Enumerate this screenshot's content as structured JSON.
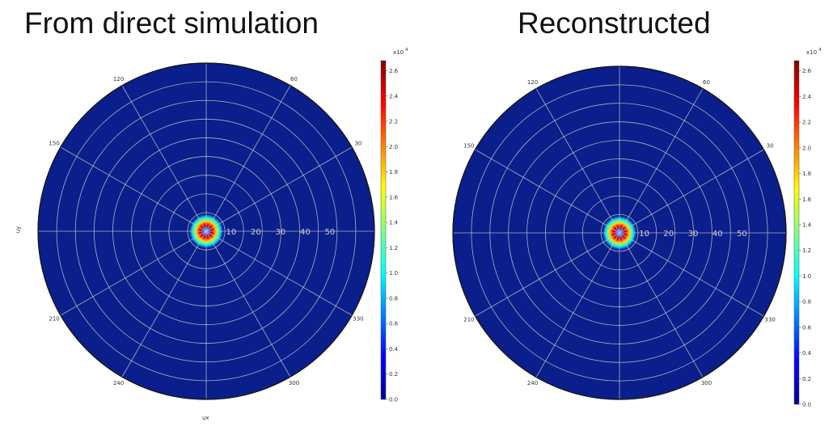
{
  "titles": {
    "left": "From direct simulation",
    "right": "Reconstructed"
  },
  "axis_labels": {
    "x": "ux",
    "y": "uy"
  },
  "colorbar": {
    "exponent_label": "x10",
    "exponent": "4",
    "ticks": [
      "0.0",
      "0.2",
      "0.4",
      "0.6",
      "0.8",
      "1.0",
      "1.2",
      "1.4",
      "1.6",
      "1.8",
      "2.0",
      "2.2",
      "2.4",
      "2.6"
    ],
    "max": 2.68,
    "colormap": [
      "#00008f",
      "#0000ff",
      "#0080ff",
      "#00ffff",
      "#80ff80",
      "#ffff00",
      "#ff8000",
      "#ff0000",
      "#800000"
    ]
  },
  "colors": {
    "background_field": "#0a1e8c",
    "grid": "#c8c8c8",
    "ring_outer": "#b40000"
  },
  "chart_data": [
    {
      "type": "heatmap",
      "projection": "polar",
      "title": "From direct simulation",
      "xlabel": "ux",
      "ylabel": "uy",
      "radial_ticks": [
        10,
        20,
        30,
        40,
        50
      ],
      "radial_range": [
        0,
        60
      ],
      "angular_ticks": [
        30,
        60,
        120,
        150,
        210,
        240,
        300,
        330
      ],
      "grid": true,
      "value_range": [
        0,
        2.68
      ],
      "value_scale": "x10^4",
      "peak": {
        "radius": 2,
        "value": 2.68
      }
    },
    {
      "type": "heatmap",
      "projection": "polar",
      "title": "Reconstructed",
      "xlabel": "",
      "ylabel": "",
      "radial_ticks": [
        10,
        20,
        30,
        40,
        50
      ],
      "radial_range": [
        0,
        60
      ],
      "angular_ticks": [
        30,
        60,
        120,
        150,
        210,
        240,
        300,
        330
      ],
      "grid": true,
      "value_range": [
        0,
        2.68
      ],
      "value_scale": "x10^4",
      "peak": {
        "radius": 2,
        "value": 2.68
      }
    }
  ]
}
